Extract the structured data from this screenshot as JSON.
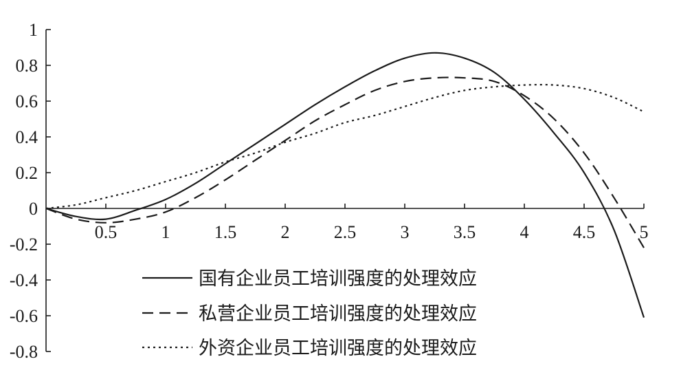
{
  "chart_data": {
    "type": "line",
    "title": "",
    "xlabel": "",
    "ylabel": "",
    "xlim": [
      0,
      5
    ],
    "ylim": [
      -0.8,
      1
    ],
    "x_ticks": [
      "0.5",
      "1",
      "1.5",
      "2",
      "2.5",
      "3",
      "3.5",
      "4",
      "4.5",
      "5"
    ],
    "y_ticks": [
      "1",
      "0.8",
      "0.6",
      "0.4",
      "0.2",
      "0",
      "-0.2",
      "-0.4",
      "-0.6",
      "-0.8"
    ],
    "grid": false,
    "legend_position": "bottom-center",
    "x": [
      0,
      0.25,
      0.5,
      0.75,
      1,
      1.25,
      1.5,
      1.75,
      2,
      2.25,
      2.5,
      2.75,
      3,
      3.25,
      3.5,
      3.75,
      4,
      4.25,
      4.5,
      4.75,
      5
    ],
    "series": [
      {
        "name": "国有企业员工培训强度的处理效应",
        "style": "solid",
        "values": [
          0,
          -0.045,
          -0.06,
          -0.01,
          0.05,
          0.14,
          0.25,
          0.36,
          0.47,
          0.58,
          0.68,
          0.77,
          0.84,
          0.87,
          0.84,
          0.76,
          0.61,
          0.42,
          0.2,
          -0.12,
          -0.61
        ]
      },
      {
        "name": "私营企业员工培训强度的处理效应",
        "style": "dashed",
        "values": [
          0,
          -0.06,
          -0.08,
          -0.06,
          -0.02,
          0.06,
          0.16,
          0.27,
          0.38,
          0.49,
          0.58,
          0.66,
          0.71,
          0.73,
          0.73,
          0.71,
          0.63,
          0.5,
          0.31,
          0.06,
          -0.22
        ]
      },
      {
        "name": "外资企业员工培训强度的处理效应",
        "style": "dotted",
        "values": [
          0,
          0.02,
          0.06,
          0.1,
          0.15,
          0.2,
          0.26,
          0.31,
          0.37,
          0.42,
          0.48,
          0.52,
          0.57,
          0.62,
          0.66,
          0.68,
          0.69,
          0.69,
          0.67,
          0.62,
          0.54
        ]
      }
    ]
  }
}
